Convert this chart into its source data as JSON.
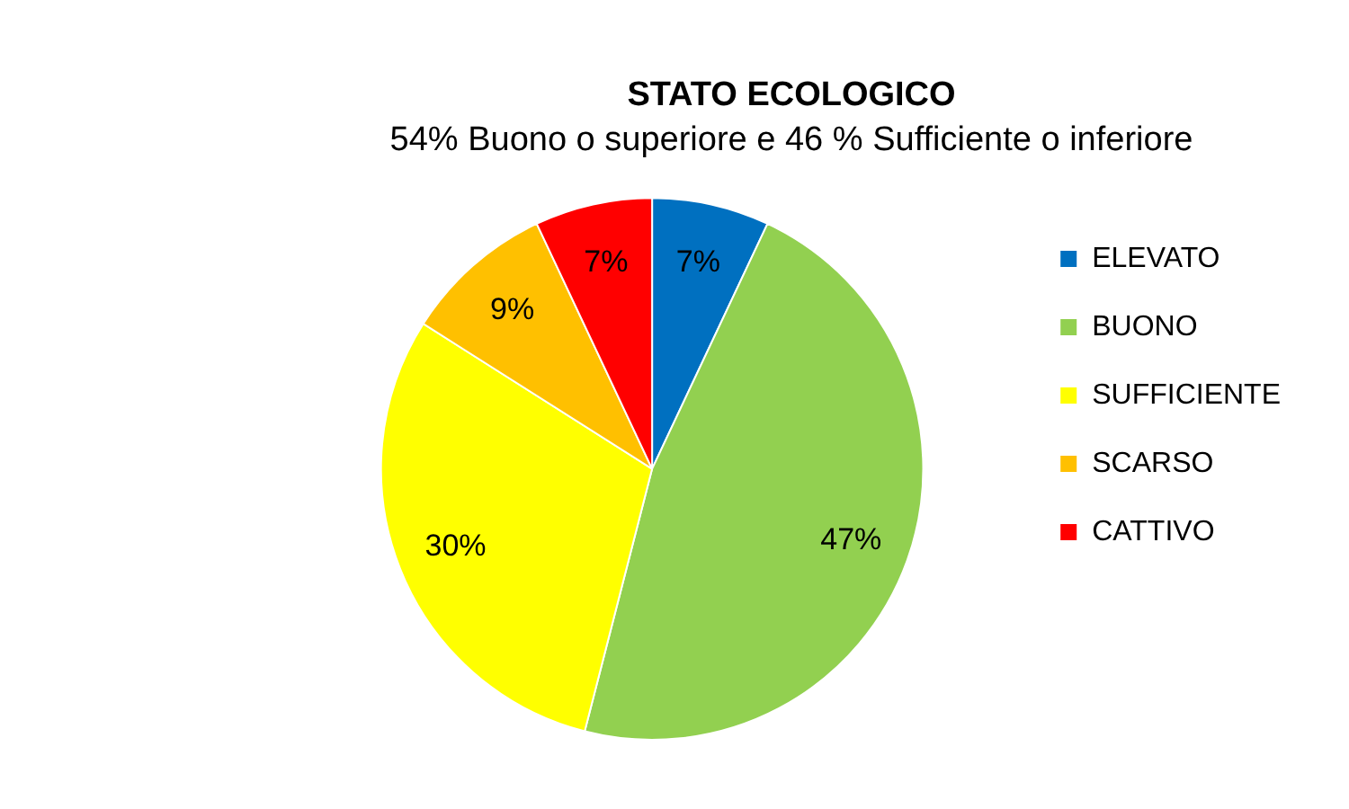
{
  "chart_data": {
    "type": "pie",
    "title": "STATO ECOLOGICO",
    "subtitle": "54% Buono o superiore e 46 % Sufficiente o inferiore",
    "categories": [
      "ELEVATO",
      "BUONO",
      "SUFFICIENTE",
      "SCARSO",
      "CATTIVO"
    ],
    "values": [
      7,
      47,
      30,
      9,
      7
    ],
    "colors": [
      "#0070c0",
      "#92d050",
      "#ffff00",
      "#ffc000",
      "#ff0000"
    ],
    "value_labels": [
      "7%",
      "47%",
      "30%",
      "9%",
      "7%"
    ],
    "legend": "right"
  }
}
